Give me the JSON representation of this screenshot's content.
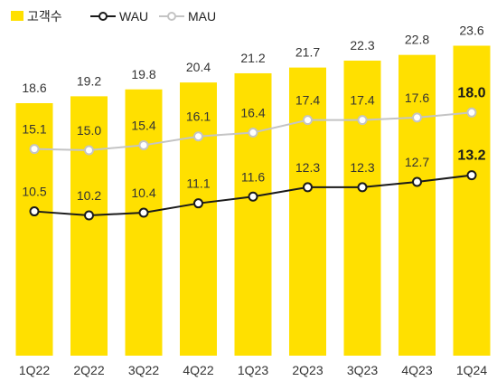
{
  "colors": {
    "bar": "#FFE000",
    "wau_line": "#1a1a1a",
    "mau_line": "#c4c4c4",
    "highlight_text": "#1a1a1a"
  },
  "legend": [
    {
      "key": "customers",
      "label": "고객수",
      "marker": "square"
    },
    {
      "key": "wau",
      "label": "WAU",
      "marker": "line-circle"
    },
    {
      "key": "mau",
      "label": "MAU",
      "marker": "line-circle"
    }
  ],
  "chart_data": {
    "type": "bar",
    "categories": [
      "1Q22",
      "2Q22",
      "3Q22",
      "4Q22",
      "1Q23",
      "2Q23",
      "3Q23",
      "4Q23",
      "1Q24"
    ],
    "series": [
      {
        "name": "고객수",
        "type": "bar",
        "values": [
          18.6,
          19.2,
          19.8,
          20.4,
          21.2,
          21.7,
          22.3,
          22.8,
          23.6
        ]
      },
      {
        "name": "WAU",
        "type": "line",
        "values": [
          10.5,
          10.2,
          10.4,
          11.1,
          11.6,
          12.3,
          12.3,
          12.7,
          13.2
        ]
      },
      {
        "name": "MAU",
        "type": "line",
        "values": [
          15.1,
          15.0,
          15.4,
          16.1,
          16.4,
          17.4,
          17.4,
          17.6,
          18.0
        ]
      }
    ],
    "value_labels": {
      "customers": [
        "18.6",
        "19.2",
        "19.8",
        "20.4",
        "21.2",
        "21.7",
        "22.3",
        "22.8",
        "23.6"
      ],
      "wau": [
        "10.5",
        "10.2",
        "10.4",
        "11.1",
        "11.6",
        "12.3",
        "12.3",
        "12.7",
        "13.2"
      ],
      "mau": [
        "15.1",
        "15.0",
        "15.4",
        "16.1",
        "16.4",
        "17.4",
        "17.4",
        "17.6",
        "18.0"
      ]
    },
    "highlight_last_point": true,
    "grid": false,
    "legend_position": "top-left",
    "title": "",
    "xlabel": "",
    "ylabel": ""
  }
}
